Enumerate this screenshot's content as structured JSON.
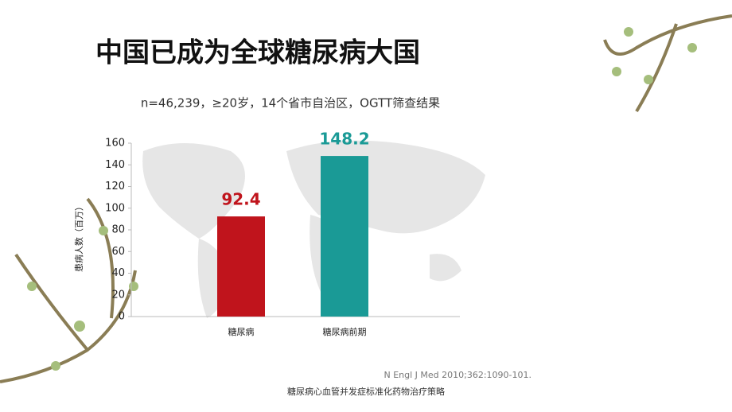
{
  "chart_data": {
    "type": "bar",
    "title": "中国已成为全球糖尿病大国",
    "subtitle": "n=46,239，≥20岁，14个省市自治区，OGTT筛查结果",
    "y_label": "患病人数（百万）",
    "categories": [
      "糖尿病",
      "糖尿病前期"
    ],
    "values": [
      92.4,
      148.2
    ],
    "colors": [
      "#c0141c",
      "#1a9a96"
    ],
    "ylim": [
      0,
      160
    ],
    "yticks": [
      0,
      20,
      40,
      60,
      80,
      100,
      120,
      140,
      160
    ],
    "grid": false,
    "source": "N Engl J Med 2010;362:1090-101.",
    "footer": "糖尿病心血管并发症标准化药物治疗策略"
  }
}
